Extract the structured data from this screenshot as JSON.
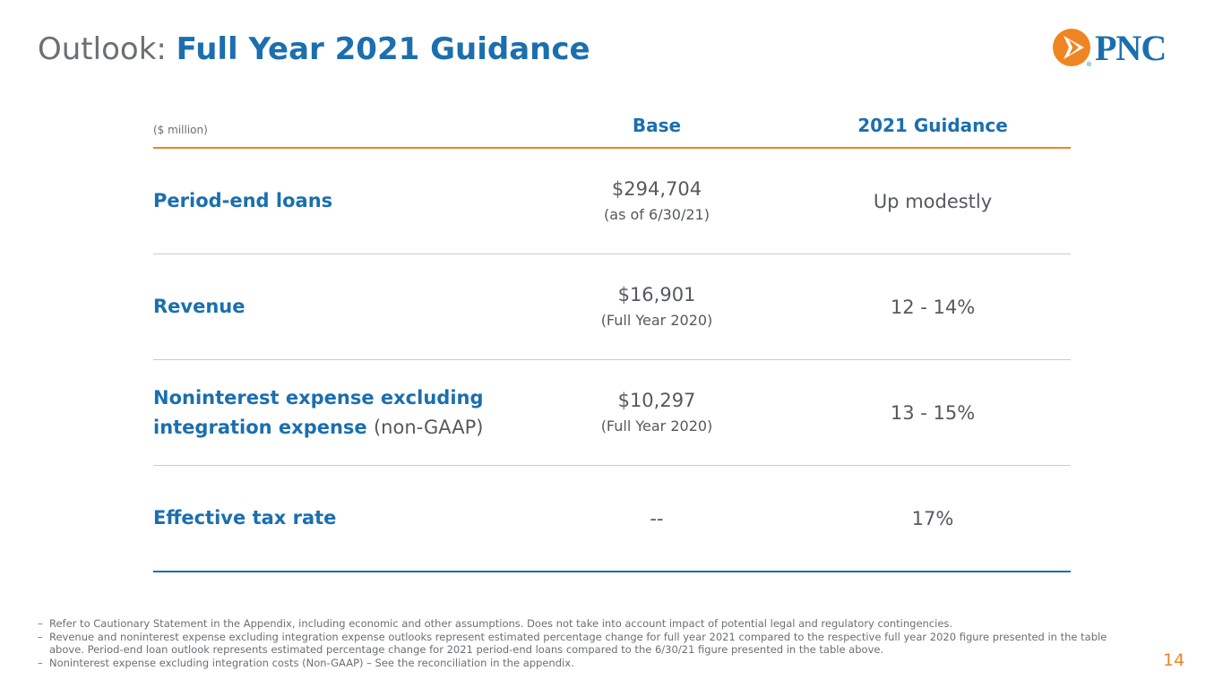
{
  "title": {
    "prefix": "Outlook:",
    "main": "Full Year 2021 Guidance"
  },
  "logo": {
    "text": "PNC",
    "mark": "®",
    "icon": "pnc-logo-icon"
  },
  "colors": {
    "accent_blue": "#1b6fae",
    "accent_orange": "#ef8422",
    "text_gray": "#55595f"
  },
  "table": {
    "unit_label": "($ million)",
    "headers": {
      "base": "Base",
      "guidance": "2021 Guidance"
    },
    "rows": [
      {
        "label": "Period-end loans",
        "label_line2": "",
        "note": "",
        "base_value": "$294,704",
        "base_sub": "(as of 6/30/21)",
        "guidance": "Up modestly"
      },
      {
        "label": "Revenue",
        "label_line2": "",
        "note": "",
        "base_value": "$16,901",
        "base_sub": "(Full Year 2020)",
        "guidance": "12 - 14%"
      },
      {
        "label": "Noninterest expense excluding",
        "label_line2": "integration expense",
        "note": "(non-GAAP)",
        "base_value": "$10,297",
        "base_sub": "(Full Year 2020)",
        "guidance": "13 - 15%"
      },
      {
        "label": "Effective tax rate",
        "label_line2": "",
        "note": "",
        "base_value": "--",
        "base_sub": "",
        "guidance": "17%"
      }
    ]
  },
  "footnotes": {
    "dash": "–",
    "items": [
      "Refer to Cautionary Statement in the Appendix, including economic and other assumptions. Does not take into account impact of potential legal and regulatory contingencies.",
      "Revenue and noninterest expense excluding integration expense outlooks represent estimated percentage change for full year 2021 compared to the respective full year 2020 figure presented in the table above. Period-end loan outlook represents estimated percentage change for 2021 period-end loans compared to the 6/30/21 figure presented in the table above.",
      "Noninterest expense excluding integration costs (Non-GAAP) – See the reconciliation in the appendix."
    ]
  },
  "page_number": "14"
}
